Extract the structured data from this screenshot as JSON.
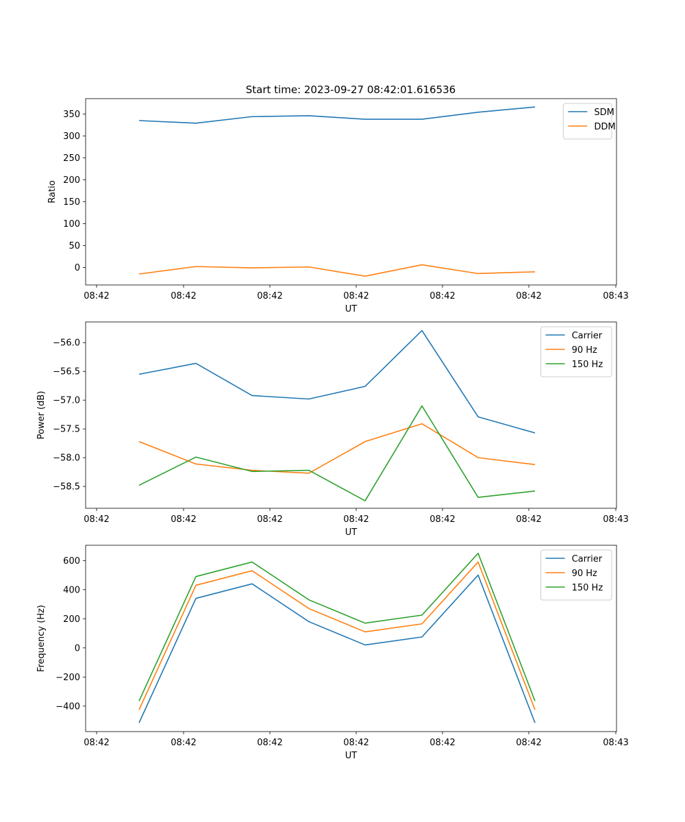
{
  "title": "Start time: 2023-09-27 08:42:01.616536",
  "x_tick_labels": [
    "08:42",
    "08:42",
    "08:42",
    "08:42",
    "08:42",
    "08:42",
    "08:43"
  ],
  "chart_data": [
    {
      "type": "line",
      "title": "Start time: 2023-09-27 08:42:01.616536",
      "xlabel": "UT",
      "ylabel": "Ratio",
      "ylim": [
        -40,
        385
      ],
      "yticks": [
        0,
        50,
        100,
        150,
        200,
        250,
        300,
        350
      ],
      "ytick_labels": [
        "0",
        "50",
        "100",
        "150",
        "200",
        "250",
        "300",
        "350"
      ],
      "x": [
        1,
        2,
        3,
        4,
        5,
        6,
        7,
        8
      ],
      "legend_position": "top-right",
      "series": [
        {
          "name": "SDM",
          "color": "#1f77b4",
          "values": [
            335,
            329,
            344,
            346,
            338,
            338,
            354,
            366
          ]
        },
        {
          "name": "DDM",
          "color": "#ff7f0e",
          "values": [
            -15,
            2,
            -1,
            1,
            -20,
            6,
            -14,
            -10
          ]
        }
      ]
    },
    {
      "type": "line",
      "title": "",
      "xlabel": "UT",
      "ylabel": "Power (dB)",
      "ylim": [
        -58.88,
        -55.64
      ],
      "yticks": [
        -58.5,
        -58.0,
        -57.5,
        -57.0,
        -56.5,
        -56.0
      ],
      "ytick_labels": [
        "−58.5",
        "−58.0",
        "−57.5",
        "−57.0",
        "−56.5",
        "−56.0"
      ],
      "x": [
        1,
        2,
        3,
        4,
        5,
        6,
        7,
        8
      ],
      "legend_position": "top-right",
      "series": [
        {
          "name": "Carrier",
          "color": "#1f77b4",
          "values": [
            -56.55,
            -56.36,
            -56.92,
            -56.98,
            -56.76,
            -55.79,
            -57.29,
            -57.57
          ]
        },
        {
          "name": "90 Hz",
          "color": "#ff7f0e",
          "values": [
            -57.72,
            -58.11,
            -58.22,
            -58.27,
            -57.72,
            -57.41,
            -58.0,
            -58.12
          ]
        },
        {
          "name": "150 Hz",
          "color": "#2ca02c",
          "values": [
            -58.48,
            -57.99,
            -58.24,
            -58.22,
            -58.75,
            -57.1,
            -58.69,
            -58.58
          ]
        }
      ]
    },
    {
      "type": "line",
      "title": "",
      "xlabel": "UT",
      "ylabel": "Frequency (Hz)",
      "ylim": [
        -575,
        705
      ],
      "yticks": [
        -400,
        -200,
        0,
        200,
        400,
        600
      ],
      "ytick_labels": [
        "−400",
        "−200",
        "0",
        "200",
        "400",
        "600"
      ],
      "x": [
        1,
        2,
        3,
        4,
        5,
        6,
        7,
        8
      ],
      "legend_position": "top-right",
      "series": [
        {
          "name": "Carrier",
          "color": "#1f77b4",
          "values": [
            -515,
            340,
            440,
            180,
            20,
            75,
            500,
            -515
          ]
        },
        {
          "name": "90 Hz",
          "color": "#ff7f0e",
          "values": [
            -425,
            430,
            530,
            270,
            110,
            165,
            590,
            -425
          ]
        },
        {
          "name": "150 Hz",
          "color": "#2ca02c",
          "values": [
            -365,
            490,
            590,
            330,
            170,
            225,
            650,
            -365
          ]
        }
      ]
    }
  ]
}
